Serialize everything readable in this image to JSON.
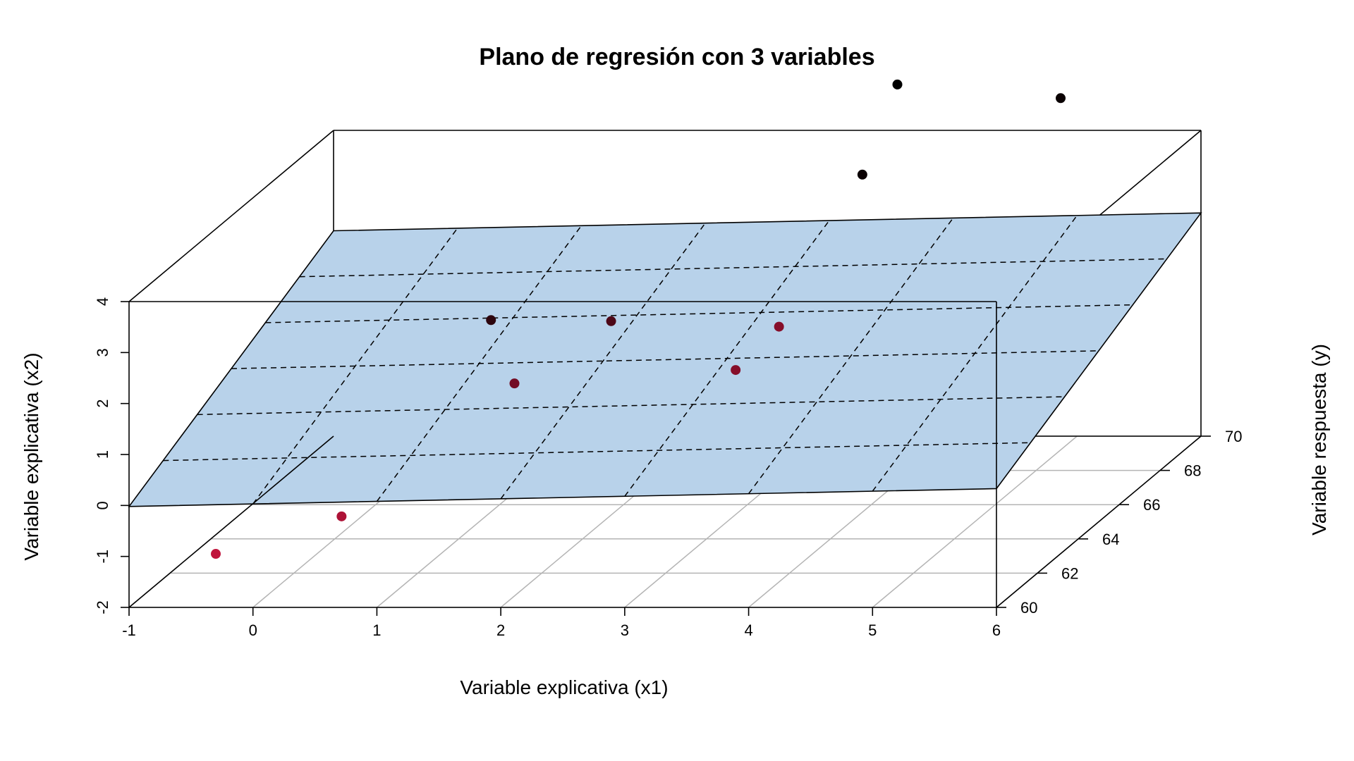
{
  "chart_data": {
    "type": "scatter",
    "subtype": "3d-regression-plane",
    "title": "Plano de regresión con 3 variables",
    "xlabel": "Variable explicativa (x1)",
    "ylabel": "Variable explicativa (x2)",
    "zlabel": "Variable respuesta (y)",
    "xlim": [
      -1,
      6
    ],
    "ylim": [
      -2,
      4
    ],
    "zlim": [
      60,
      70
    ],
    "x_ticks": [
      "-1",
      "0",
      "1",
      "2",
      "3",
      "4",
      "5",
      "6"
    ],
    "y_ticks": [
      "-2",
      "-1",
      "0",
      "1",
      "2",
      "3",
      "4"
    ],
    "z_ticks": [
      "60",
      "62",
      "64",
      "66",
      "68",
      "70"
    ],
    "z_grid": true,
    "plane_color": "#b8d2ea",
    "point_color_low": "#c0143c",
    "point_color_high": "#000000",
    "points": [
      {
        "x1": -0.3,
        "x2": -0.95,
        "y": 60.0
      },
      {
        "x1": 0.55,
        "x2": -0.55,
        "y": 61.0
      },
      {
        "x1": 0.65,
        "x2": 1.05,
        "y": 67.7
      },
      {
        "x1": 1.9,
        "x2": 1.6,
        "y": 66.0
      },
      {
        "x1": 1.45,
        "x2": 1.05,
        "y": 64.0
      },
      {
        "x1": 3.75,
        "x2": 2.5,
        "y": 63.0
      },
      {
        "x1": 3.35,
        "x2": 3.3,
        "y": 69.5
      },
      {
        "x1": 3.4,
        "x2": 1.65,
        "y": 63.0
      },
      {
        "x1": 3.55,
        "x2": 4.9,
        "y": 70.0
      },
      {
        "x1": 4.95,
        "x2": 4.8,
        "y": 69.5
      }
    ]
  }
}
